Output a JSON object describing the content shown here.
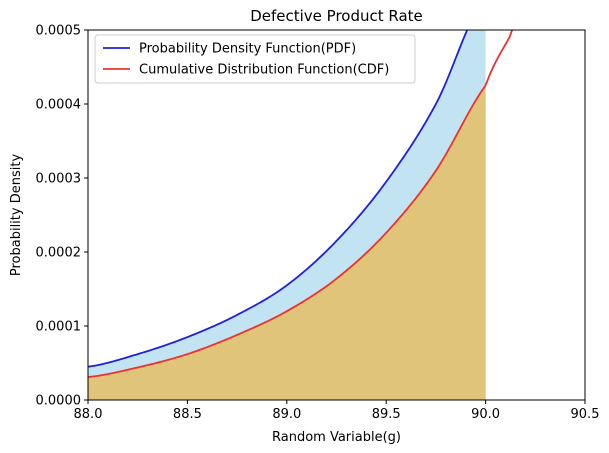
{
  "chart_data": {
    "type": "line",
    "title": "Defective Product Rate",
    "xlabel": "Random Variable(g)",
    "ylabel": "Probability Density",
    "xlim": [
      88.0,
      90.5
    ],
    "ylim": [
      0.0,
      0.0005
    ],
    "x_ticks": [
      "88.0",
      "88.5",
      "89.0",
      "89.5",
      "90.0",
      "90.5"
    ],
    "y_ticks": [
      "0.0000",
      "0.0001",
      "0.0002",
      "0.0003",
      "0.0004",
      "0.0005"
    ],
    "grid": false,
    "legend_position": "top-left",
    "fill_upper_limit": 90.0,
    "series": [
      {
        "name": "Probability Density Function(PDF)",
        "color": "#1f1fe0",
        "fill_color": "#a8d8ec",
        "x": [
          88.0,
          88.25,
          88.5,
          88.75,
          89.0,
          89.25,
          89.5,
          89.75,
          90.0
        ],
        "y": [
          4.5e-05,
          6.2e-05,
          8.5e-05,
          0.000115,
          0.000155,
          0.000215,
          0.000295,
          0.0004,
          0.000545
        ]
      },
      {
        "name": "Cumulative Distribution Function(CDF)",
        "color": "#ee3030",
        "fill_color": "#e0c47a",
        "x": [
          88.0,
          88.25,
          88.5,
          88.75,
          89.0,
          89.25,
          89.5,
          89.75,
          90.0,
          90.12,
          90.2
        ],
        "y": [
          3.1e-05,
          4.4e-05,
          6.2e-05,
          8.8e-05,
          0.00012,
          0.000164,
          0.000226,
          0.00031,
          0.000425,
          0.00049,
          0.00054
        ]
      }
    ]
  }
}
